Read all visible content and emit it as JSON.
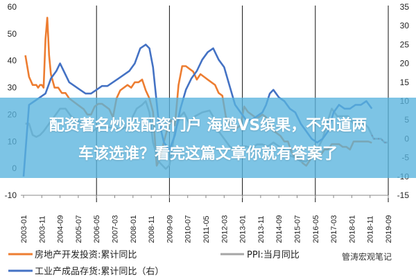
{
  "banner": {
    "line1": "配资著名炒股配资门户 海鸥VS缤果，不知道两",
    "line2": "车该选谁？看完这篇文章你就有答案了"
  },
  "watermark": "管涛宏观笔记",
  "chart_data": {
    "type": "line",
    "title": "",
    "left_axis": {
      "ylim": [
        -10,
        60
      ],
      "ticks": [
        -10,
        0,
        10,
        20,
        30,
        40,
        50,
        60
      ]
    },
    "right_axis": {
      "ylim": [
        -15,
        35
      ],
      "ticks": [
        -15,
        -10,
        -5,
        0,
        5,
        10,
        15,
        20,
        25,
        30,
        35
      ]
    },
    "x_ticks": [
      "2003-01",
      "2003-11",
      "2004-09",
      "2005-07",
      "2006-05",
      "2007-03",
      "2008-01",
      "2008-11",
      "2009-09",
      "2010-07",
      "2011-05",
      "2012-03",
      "2013-01",
      "2013-11",
      "2014-09",
      "2015-07",
      "2016-05",
      "2017-03",
      "2018-01",
      "2018-11",
      "2019-09"
    ],
    "vlines": [
      "2006-05",
      "2009-09",
      "2013-01",
      "2016-05",
      "2019-09"
    ],
    "grid": false,
    "legend_position": "bottom",
    "series": [
      {
        "name": "房地产开发投资:累计同比",
        "axis": "left",
        "color": "#ED7D31",
        "points": [
          [
            "2003-02",
            42
          ],
          [
            "2003-04",
            34
          ],
          [
            "2003-06",
            31
          ],
          [
            "2003-08",
            31
          ],
          [
            "2003-09",
            30
          ],
          [
            "2003-10",
            31
          ],
          [
            "2003-11",
            31
          ],
          [
            "2003-12",
            30
          ],
          [
            "2004-01",
            48
          ],
          [
            "2004-02",
            56
          ],
          [
            "2004-03",
            42
          ],
          [
            "2004-04",
            35
          ],
          [
            "2004-06",
            30
          ],
          [
            "2004-08",
            30
          ],
          [
            "2004-10",
            28
          ],
          [
            "2004-12",
            28
          ],
          [
            "2005-02",
            26
          ],
          [
            "2005-04",
            25
          ],
          [
            "2005-06",
            24
          ],
          [
            "2005-08",
            23
          ],
          [
            "2005-10",
            22
          ],
          [
            "2005-12",
            20
          ],
          [
            "2006-02",
            20
          ],
          [
            "2006-04",
            23
          ],
          [
            "2006-06",
            24
          ],
          [
            "2006-08",
            24
          ],
          [
            "2006-10",
            23
          ],
          [
            "2006-12",
            22
          ],
          [
            "2007-02",
            19
          ],
          [
            "2007-04",
            26
          ],
          [
            "2007-06",
            29
          ],
          [
            "2007-08",
            30
          ],
          [
            "2007-10",
            31
          ],
          [
            "2007-12",
            30
          ],
          [
            "2008-02",
            32
          ],
          [
            "2008-04",
            32
          ],
          [
            "2008-06",
            33
          ],
          [
            "2008-08",
            29
          ],
          [
            "2008-10",
            26
          ],
          [
            "2008-12",
            21
          ],
          [
            "2009-02",
            1
          ],
          [
            "2009-04",
            4
          ],
          [
            "2009-06",
            10
          ],
          [
            "2009-08",
            15
          ],
          [
            "2009-10",
            18
          ],
          [
            "2009-12",
            16
          ],
          [
            "2010-02",
            31
          ],
          [
            "2010-04",
            38
          ],
          [
            "2010-06",
            38
          ],
          [
            "2010-08",
            37
          ],
          [
            "2010-10",
            36
          ],
          [
            "2010-12",
            33
          ],
          [
            "2011-02",
            35
          ],
          [
            "2011-04",
            34
          ],
          [
            "2011-06",
            33
          ],
          [
            "2011-08",
            32
          ],
          [
            "2011-10",
            31
          ],
          [
            "2011-12",
            28
          ],
          [
            "2012-02",
            27
          ],
          [
            "2012-04",
            19
          ],
          [
            "2012-06",
            17
          ],
          [
            "2012-08",
            15
          ],
          [
            "2012-10",
            15
          ],
          [
            "2012-12",
            16
          ],
          [
            "2013-02",
            23
          ],
          [
            "2013-04",
            21
          ],
          [
            "2013-06",
            20
          ],
          [
            "2013-08",
            19
          ],
          [
            "2013-10",
            19
          ],
          [
            "2013-12",
            20
          ],
          [
            "2014-02",
            19
          ],
          [
            "2014-04",
            16
          ],
          [
            "2014-06",
            14
          ],
          [
            "2014-08",
            13
          ],
          [
            "2014-10",
            12
          ],
          [
            "2014-12",
            10
          ],
          [
            "2015-02",
            10
          ],
          [
            "2015-04",
            6
          ],
          [
            "2015-06",
            4
          ],
          [
            "2015-08",
            4
          ],
          [
            "2015-10",
            2
          ],
          [
            "2015-12",
            1
          ],
          [
            "2016-02",
            3
          ],
          [
            "2016-04",
            7
          ],
          [
            "2016-06",
            6
          ],
          [
            "2016-08",
            5
          ],
          [
            "2016-10",
            7
          ],
          [
            "2016-12",
            7
          ],
          [
            "2017-02",
            9
          ],
          [
            "2017-04",
            9
          ],
          [
            "2017-06",
            9
          ],
          [
            "2017-08",
            8
          ],
          [
            "2017-10",
            8
          ],
          [
            "2017-12",
            7
          ],
          [
            "2018-02",
            10
          ],
          [
            "2018-04",
            10
          ],
          [
            "2018-06",
            10
          ],
          [
            "2018-08",
            10
          ],
          [
            "2018-10",
            10
          ],
          [
            "2018-12",
            9.5
          ]
        ]
      },
      {
        "name": "PPI:当月同比",
        "axis": "right",
        "color": "#A5A5A5",
        "points": [
          [
            "2003-02",
            4
          ],
          [
            "2003-04",
            4
          ],
          [
            "2003-06",
            1
          ],
          [
            "2003-08",
            0.5
          ],
          [
            "2003-10",
            1
          ],
          [
            "2003-12",
            2
          ],
          [
            "2004-03",
            4
          ],
          [
            "2004-06",
            6
          ],
          [
            "2004-09",
            8
          ],
          [
            "2004-12",
            8
          ],
          [
            "2005-03",
            6
          ],
          [
            "2005-06",
            5
          ],
          [
            "2005-09",
            4
          ],
          [
            "2005-12",
            3
          ],
          [
            "2006-03",
            2
          ],
          [
            "2006-06",
            3
          ],
          [
            "2006-09",
            3.5
          ],
          [
            "2006-12",
            3
          ],
          [
            "2007-03",
            3
          ],
          [
            "2007-06",
            2.5
          ],
          [
            "2007-09",
            3
          ],
          [
            "2007-12",
            5
          ],
          [
            "2008-03",
            8
          ],
          [
            "2008-06",
            9
          ],
          [
            "2008-08",
            10
          ],
          [
            "2008-10",
            7
          ],
          [
            "2008-12",
            -1
          ],
          [
            "2009-03",
            -6
          ],
          [
            "2009-07",
            -8
          ],
          [
            "2009-09",
            -7
          ],
          [
            "2009-12",
            2
          ],
          [
            "2010-03",
            6
          ],
          [
            "2010-05",
            7
          ],
          [
            "2010-08",
            4
          ],
          [
            "2010-11",
            6
          ],
          [
            "2011-03",
            7
          ],
          [
            "2011-07",
            7.5
          ],
          [
            "2011-10",
            5
          ],
          [
            "2011-12",
            2
          ],
          [
            "2012-03",
            0
          ],
          [
            "2012-06",
            -2
          ],
          [
            "2012-09",
            -3.5
          ],
          [
            "2012-12",
            -2
          ],
          [
            "2013-03",
            -2
          ],
          [
            "2013-06",
            -2.5
          ],
          [
            "2013-09",
            -1.5
          ],
          [
            "2013-12",
            -1.5
          ],
          [
            "2014-03",
            -2
          ],
          [
            "2014-06",
            -1
          ],
          [
            "2014-09",
            -2
          ],
          [
            "2014-12",
            -3
          ],
          [
            "2015-03",
            -4.5
          ],
          [
            "2015-06",
            -5
          ],
          [
            "2015-09",
            -6
          ],
          [
            "2015-12",
            -6
          ],
          [
            "2016-03",
            -4
          ],
          [
            "2016-06",
            -3
          ],
          [
            "2016-09",
            0
          ],
          [
            "2016-12",
            5
          ],
          [
            "2017-02",
            8
          ],
          [
            "2017-05",
            6
          ],
          [
            "2017-08",
            6
          ],
          [
            "2017-11",
            6
          ],
          [
            "2018-02",
            4
          ],
          [
            "2018-05",
            4
          ],
          [
            "2018-08",
            4
          ],
          [
            "2018-10",
            3
          ],
          [
            "2018-12",
            1
          ],
          [
            "2019-01",
            0
          ],
          [
            "2019-03",
            0
          ],
          [
            "2019-05",
            0
          ],
          [
            "2019-07",
            -1
          ],
          [
            "2019-09",
            -1
          ]
        ]
      },
      {
        "name": "工业产成品存货:累计同比（右）",
        "axis": "right",
        "color": "#4472C4",
        "points": [
          [
            "2003-01",
            -10
          ],
          [
            "2003-04",
            9
          ],
          [
            "2003-07",
            10
          ],
          [
            "2003-10",
            11
          ],
          [
            "2004-01",
            12
          ],
          [
            "2004-04",
            16
          ],
          [
            "2004-07",
            18
          ],
          [
            "2004-09",
            20
          ],
          [
            "2004-11",
            18
          ],
          [
            "2005-02",
            15
          ],
          [
            "2005-05",
            14
          ],
          [
            "2005-08",
            13
          ],
          [
            "2005-11",
            12
          ],
          [
            "2006-02",
            12
          ],
          [
            "2006-05",
            13
          ],
          [
            "2006-08",
            14
          ],
          [
            "2006-11",
            14
          ],
          [
            "2007-02",
            15
          ],
          [
            "2007-05",
            16
          ],
          [
            "2007-08",
            17
          ],
          [
            "2007-11",
            18
          ],
          [
            "2008-02",
            20
          ],
          [
            "2008-05",
            24
          ],
          [
            "2008-08",
            25
          ],
          [
            "2008-10",
            24
          ],
          [
            "2008-12",
            19
          ],
          [
            "2009-03",
            5
          ],
          [
            "2009-06",
            -1
          ],
          [
            "2009-09",
            -3
          ],
          [
            "2009-12",
            1
          ],
          [
            "2010-03",
            8
          ],
          [
            "2010-06",
            13
          ],
          [
            "2010-09",
            16
          ],
          [
            "2010-12",
            18
          ],
          [
            "2011-03",
            21
          ],
          [
            "2011-06",
            23
          ],
          [
            "2011-09",
            24
          ],
          [
            "2011-12",
            21
          ],
          [
            "2012-03",
            19
          ],
          [
            "2012-06",
            14
          ],
          [
            "2012-09",
            9
          ],
          [
            "2012-12",
            7
          ],
          [
            "2013-03",
            5
          ],
          [
            "2013-06",
            5
          ],
          [
            "2013-09",
            6
          ],
          [
            "2013-12",
            7
          ],
          [
            "2014-02",
            9
          ],
          [
            "2014-04",
            12
          ],
          [
            "2014-06",
            13
          ],
          [
            "2014-09",
            11
          ],
          [
            "2014-12",
            10
          ],
          [
            "2015-03",
            8
          ],
          [
            "2015-06",
            7
          ],
          [
            "2015-09",
            4
          ],
          [
            "2015-12",
            2
          ],
          [
            "2016-03",
            0
          ],
          [
            "2016-06",
            -1
          ],
          [
            "2016-09",
            0
          ],
          [
            "2016-12",
            2
          ],
          [
            "2017-03",
            7
          ],
          [
            "2017-06",
            9
          ],
          [
            "2017-09",
            8
          ],
          [
            "2017-12",
            8
          ],
          [
            "2018-03",
            9
          ],
          [
            "2018-06",
            9
          ],
          [
            "2018-09",
            10
          ],
          [
            "2018-12",
            8
          ]
        ]
      }
    ]
  }
}
